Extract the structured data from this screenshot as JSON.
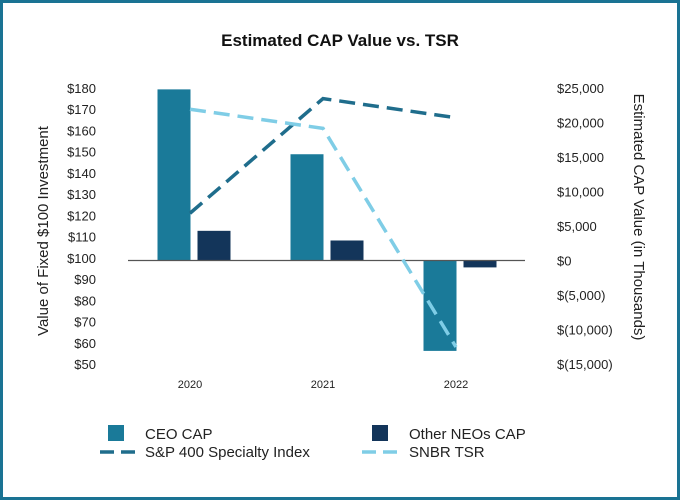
{
  "chart_data": {
    "type": "bar",
    "title": "Estimated CAP Value vs. TSR",
    "categories": [
      "2020",
      "2021",
      "2022"
    ],
    "y_left": {
      "label": "Value of Fixed $100 Investment",
      "range": [
        50,
        180
      ],
      "ticks": [
        "$50",
        "$60",
        "$70",
        "$80",
        "$90",
        "$100",
        "$110",
        "$120",
        "$130",
        "$140",
        "$150",
        "$160",
        "$170",
        "$180"
      ],
      "tick_values": [
        50,
        60,
        70,
        80,
        90,
        100,
        110,
        120,
        130,
        140,
        150,
        160,
        170,
        180
      ]
    },
    "y_right": {
      "label": "Estimated CAP Value (in Thousands)",
      "range": [
        -15000,
        25000
      ],
      "ticks": [
        "$(15,000)",
        "$(10,000)",
        "$(5,000)",
        "$0",
        "$5,000",
        "$10,000",
        "$15,000",
        "$20,000",
        "$25,000"
      ],
      "tick_values": [
        -15000,
        -10000,
        -5000,
        0,
        5000,
        10000,
        15000,
        20000,
        25000
      ]
    },
    "bar_series": [
      {
        "name": "CEO CAP",
        "axis": "right",
        "color": "#1a7a99",
        "values": [
          24800,
          15400,
          -13100
        ]
      },
      {
        "name": "Other NEOs CAP",
        "axis": "right",
        "color": "#13355a",
        "values": [
          4300,
          2900,
          -1000
        ]
      }
    ],
    "line_series": [
      {
        "name": "S&P 400 Specialty Index",
        "axis": "left",
        "color": "#1f6d8c",
        "values": [
          121,
          175,
          166
        ]
      },
      {
        "name": "SNBR TSR",
        "axis": "left",
        "color": "#7fcde6",
        "values": [
          170,
          161,
          58
        ]
      }
    ],
    "legend": [
      "CEO CAP",
      "Other NEOs CAP",
      "S&P 400 Specialty Index",
      "SNBR TSR"
    ],
    "legend_position": "bottom"
  }
}
